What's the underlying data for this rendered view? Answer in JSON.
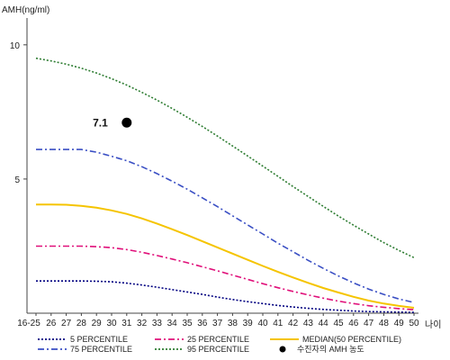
{
  "chart_data": {
    "type": "line",
    "ylabel": "AMH(ng/ml)",
    "xlabel": "나이",
    "ylim": [
      0,
      11
    ],
    "yticks": [
      10,
      5
    ],
    "categories": [
      "16-25",
      "26",
      "27",
      "28",
      "29",
      "30",
      "31",
      "32",
      "33",
      "34",
      "35",
      "36",
      "37",
      "38",
      "39",
      "40",
      "41",
      "42",
      "43",
      "44",
      "45",
      "46",
      "47",
      "48",
      "49",
      "50"
    ],
    "grid": false,
    "legend_position": "bottom",
    "series": [
      {
        "name": "5 PERCENTILE",
        "color": "#000080",
        "style": "dotted",
        "values": [
          1.2,
          1.2,
          1.2,
          1.2,
          1.19,
          1.17,
          1.12,
          1.05,
          0.97,
          0.88,
          0.79,
          0.7,
          0.6,
          0.51,
          0.43,
          0.36,
          0.29,
          0.23,
          0.18,
          0.14,
          0.11,
          0.08,
          0.06,
          0.05,
          0.04,
          0.03
        ]
      },
      {
        "name": "25 PERCENTILE",
        "color": "#e0107a",
        "style": "dashdot",
        "values": [
          2.5,
          2.5,
          2.5,
          2.5,
          2.48,
          2.44,
          2.37,
          2.27,
          2.15,
          2.02,
          1.88,
          1.73,
          1.58,
          1.42,
          1.26,
          1.1,
          0.95,
          0.81,
          0.68,
          0.56,
          0.45,
          0.36,
          0.28,
          0.22,
          0.17,
          0.13
        ]
      },
      {
        "name": "MEDIAN(50 PERCENTILE)",
        "color": "#f5c400",
        "style": "solid",
        "values": [
          4.05,
          4.05,
          4.04,
          4.0,
          3.93,
          3.83,
          3.7,
          3.53,
          3.34,
          3.13,
          2.91,
          2.68,
          2.45,
          2.22,
          1.99,
          1.76,
          1.54,
          1.33,
          1.13,
          0.94,
          0.77,
          0.61,
          0.47,
          0.36,
          0.27,
          0.2
        ]
      },
      {
        "name": "75 PERCENTILE",
        "color": "#3a4fc4",
        "style": "dashdot",
        "values": [
          6.1,
          6.1,
          6.1,
          6.1,
          6.0,
          5.85,
          5.68,
          5.46,
          5.2,
          4.92,
          4.62,
          4.3,
          3.97,
          3.63,
          3.29,
          2.95,
          2.61,
          2.29,
          1.97,
          1.67,
          1.39,
          1.13,
          0.9,
          0.7,
          0.53,
          0.4
        ]
      },
      {
        "name": "95 PERCENTILE",
        "color": "#2e7d32",
        "style": "dotted",
        "values": [
          9.5,
          9.4,
          9.28,
          9.13,
          8.95,
          8.74,
          8.5,
          8.23,
          7.94,
          7.63,
          7.3,
          6.96,
          6.6,
          6.23,
          5.86,
          5.48,
          5.1,
          4.72,
          4.35,
          3.98,
          3.62,
          3.28,
          2.95,
          2.63,
          2.34,
          2.07
        ]
      }
    ],
    "patient_point": {
      "label": "7.1",
      "x": "31",
      "y": 7.1,
      "legend": "수진자의 AMH 농도"
    }
  }
}
